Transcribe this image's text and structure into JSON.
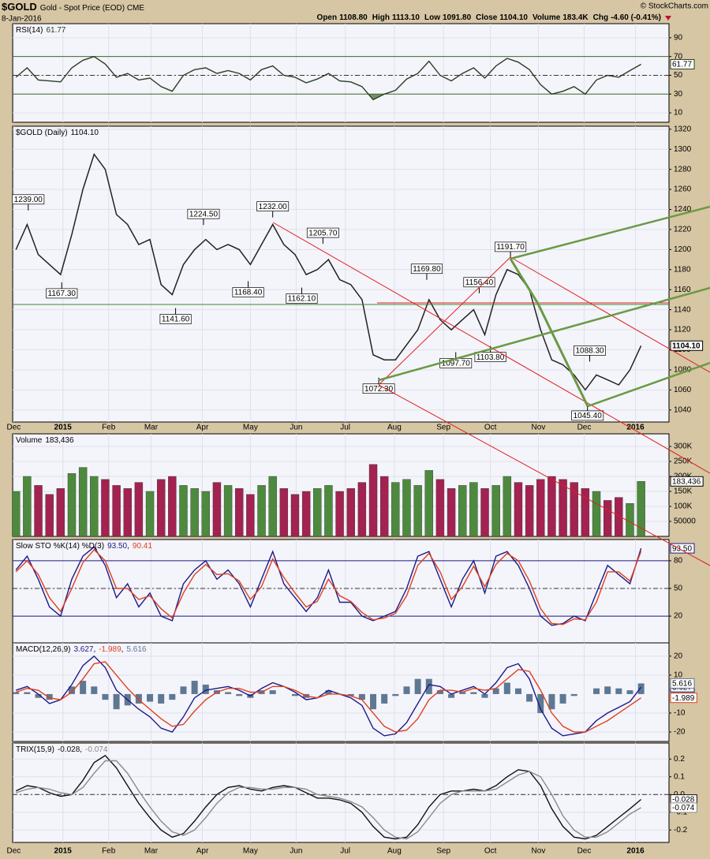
{
  "header": {
    "symbol": "$GOLD",
    "name": "Gold - Spot Price (EOD) CME",
    "date": "8-Jan-2016",
    "copyright": "© StockCharts.com",
    "quote": [
      {
        "name": "Open",
        "value": "1108.80"
      },
      {
        "name": "High",
        "value": "1113.10"
      },
      {
        "name": "Low",
        "value": "1091.80"
      },
      {
        "name": "Close",
        "value": "1104.10"
      },
      {
        "name": "Volume",
        "value": "183.4K"
      },
      {
        "name": "Chg",
        "value": "-4.60 (-0.41%)"
      }
    ]
  },
  "chart_data": [
    {
      "type": "line",
      "title": "RSI(14)",
      "ylim": [
        0,
        105
      ],
      "yticks": [
        10,
        30,
        50,
        70,
        90
      ],
      "bands": [
        30,
        70
      ],
      "midline": 50,
      "band_fill": "#4f6f35",
      "series": [
        {
          "color": "#2c3d22",
          "badge": true,
          "values": [
            48,
            58,
            45,
            44,
            43,
            58,
            66,
            70,
            62,
            48,
            52,
            45,
            47,
            38,
            33,
            50,
            56,
            58,
            52,
            55,
            52,
            45,
            56,
            60,
            50,
            48,
            42,
            46,
            52,
            44,
            43,
            38,
            24,
            30,
            34,
            46,
            52,
            65,
            50,
            44,
            52,
            58,
            47,
            60,
            68,
            64,
            56,
            40,
            30,
            33,
            38,
            30,
            45,
            50,
            48,
            55,
            61.77
          ]
        }
      ]
    },
    {
      "type": "line",
      "title": "$GOLD (Daily)",
      "ylim": [
        1028,
        1323
      ],
      "yticks": [
        1040,
        1060,
        1080,
        1100,
        1120,
        1140,
        1160,
        1180,
        1200,
        1220,
        1240,
        1260,
        1280,
        1300,
        1320
      ],
      "xlim": [
        -0.3,
        58.5
      ],
      "xticks": [
        {
          "value": -0.2,
          "label": "Dec"
        },
        {
          "value": 4.2,
          "label": "2015"
        },
        {
          "value": 8.3,
          "label": "Feb"
        },
        {
          "value": 12.1,
          "label": "Mar"
        },
        {
          "value": 16.7,
          "label": "Apr"
        },
        {
          "value": 21,
          "label": "May"
        },
        {
          "value": 25.1,
          "label": "Jun"
        },
        {
          "value": 29.5,
          "label": "Jul"
        },
        {
          "value": 33.9,
          "label": "Aug"
        },
        {
          "value": 38.3,
          "label": "Sep"
        },
        {
          "value": 42.5,
          "label": "Oct"
        },
        {
          "value": 46.8,
          "label": "Nov"
        },
        {
          "value": 50.9,
          "label": "Dec"
        },
        {
          "value": 55.5,
          "label": "2016"
        }
      ],
      "annotations": [
        {
          "x": 1.1,
          "value": 1239,
          "label": "1239.00"
        },
        {
          "x": 4.1,
          "value": 1167.3,
          "label": "1167.30"
        },
        {
          "x": 14.3,
          "value": 1141.6,
          "label": "1141.60"
        },
        {
          "x": 16.8,
          "value": 1224.5,
          "label": "1224.50"
        },
        {
          "x": 20.8,
          "value": 1168.4,
          "label": "1168.40"
        },
        {
          "x": 23,
          "value": 1232,
          "label": "1232.00"
        },
        {
          "x": 25.6,
          "value": 1162.1,
          "label": "1162.10"
        },
        {
          "x": 27.5,
          "value": 1205.7,
          "label": "1205.70"
        },
        {
          "x": 32.5,
          "value": 1072.3,
          "label": "1072.30"
        },
        {
          "x": 36.8,
          "value": 1169.8,
          "label": "1169.80"
        },
        {
          "x": 39.4,
          "value": 1097.7,
          "label": "1097.70"
        },
        {
          "x": 41.5,
          "value": 1156.4,
          "label": "1156.40"
        },
        {
          "x": 42.5,
          "value": 1103.8,
          "label": "1103.80"
        },
        {
          "x": 44.3,
          "value": 1191.7,
          "label": "1191.70"
        },
        {
          "x": 51.4,
          "value": 1088.3,
          "label": "1088.30"
        },
        {
          "x": 51.2,
          "value": 1045.4,
          "label": "1045.40"
        }
      ],
      "series": [
        {
          "color": "#222222",
          "badge": true,
          "values": [
            1200,
            1225,
            1195,
            1185,
            1175,
            1215,
            1260,
            1295,
            1280,
            1235,
            1225,
            1205,
            1210,
            1165,
            1155,
            1185,
            1200,
            1210,
            1200,
            1205,
            1200,
            1185,
            1205,
            1225,
            1205,
            1195,
            1175,
            1180,
            1190,
            1170,
            1165,
            1150,
            1095,
            1090,
            1090,
            1105,
            1120,
            1150,
            1130,
            1120,
            1130,
            1140,
            1115,
            1155,
            1180,
            1175,
            1160,
            1120,
            1090,
            1085,
            1075,
            1060,
            1075,
            1070,
            1065,
            1080,
            1104.1
          ],
          "value_labels": [
            null,
            null,
            null,
            null,
            null,
            null,
            null,
            null,
            null,
            null,
            null,
            null,
            null,
            null,
            null,
            null,
            null,
            null,
            null,
            null,
            null,
            null,
            null,
            null,
            null,
            null,
            null,
            null,
            null,
            null,
            null,
            null,
            null,
            null,
            null,
            null,
            null,
            null,
            null,
            null,
            null,
            null,
            null,
            null,
            null,
            null,
            null,
            null,
            null,
            null,
            null,
            null,
            null,
            null,
            null,
            null,
            "1104.10"
          ]
        }
      ]
    },
    {
      "type": "bar",
      "title": "Volume",
      "ylim": [
        0,
        342000
      ],
      "yticks": [
        50000,
        {
          "value": 100000,
          "label": "100K"
        },
        {
          "value": 150000,
          "label": "150K"
        },
        {
          "value": 200000,
          "label": "200K"
        },
        {
          "value": 250000,
          "label": "250K"
        },
        {
          "value": 300000,
          "label": "300K"
        }
      ],
      "up_color": "#4d8a3e",
      "down_color": "#a3224f",
      "series": [
        {
          "color": "#000000",
          "badge": true,
          "values": [
            150000,
            200000,
            170000,
            140000,
            160000,
            210000,
            230000,
            200000,
            190000,
            170000,
            160000,
            180000,
            150000,
            190000,
            200000,
            170000,
            160000,
            150000,
            180000,
            170000,
            160000,
            140000,
            170000,
            200000,
            160000,
            140000,
            150000,
            160000,
            170000,
            150000,
            160000,
            180000,
            240000,
            200000,
            180000,
            190000,
            170000,
            220000,
            190000,
            160000,
            170000,
            180000,
            160000,
            170000,
            200000,
            180000,
            170000,
            190000,
            200000,
            190000,
            180000,
            160000,
            150000,
            120000,
            130000,
            110000,
            183436
          ],
          "value_labels": [
            null,
            null,
            null,
            null,
            null,
            null,
            null,
            null,
            null,
            null,
            null,
            null,
            null,
            null,
            null,
            null,
            null,
            null,
            null,
            null,
            null,
            null,
            null,
            null,
            null,
            null,
            null,
            null,
            null,
            null,
            null,
            null,
            null,
            null,
            null,
            null,
            null,
            null,
            null,
            null,
            null,
            null,
            null,
            null,
            null,
            null,
            null,
            null,
            null,
            null,
            null,
            null,
            null,
            null,
            null,
            null,
            "183,436"
          ]
        }
      ]
    },
    {
      "type": "line",
      "title": "Slow STO %K(14) %D(3)",
      "ylim": [
        -9,
        103
      ],
      "yticks": [
        20,
        50,
        80
      ],
      "bands": [
        20,
        80
      ],
      "midline": 50,
      "series": [
        {
          "color": "#1b1b86",
          "badge": true,
          "values": [
            70,
            85,
            60,
            30,
            20,
            60,
            85,
            95,
            75,
            40,
            55,
            30,
            45,
            20,
            15,
            55,
            70,
            80,
            60,
            70,
            55,
            30,
            60,
            90,
            55,
            40,
            25,
            40,
            70,
            35,
            35,
            20,
            15,
            20,
            25,
            50,
            85,
            90,
            60,
            30,
            60,
            80,
            45,
            85,
            90,
            75,
            50,
            20,
            10,
            12,
            20,
            15,
            45,
            75,
            65,
            55,
            93.5
          ],
          "value_labels": [
            null,
            null,
            null,
            null,
            null,
            null,
            null,
            null,
            null,
            null,
            null,
            null,
            null,
            null,
            null,
            null,
            null,
            null,
            null,
            null,
            null,
            null,
            null,
            null,
            null,
            null,
            null,
            null,
            null,
            null,
            null,
            null,
            null,
            null,
            null,
            null,
            null,
            null,
            null,
            null,
            null,
            null,
            null,
            null,
            null,
            null,
            null,
            null,
            null,
            null,
            null,
            null,
            null,
            null,
            null,
            null,
            "93.50"
          ]
        },
        {
          "color": "#e0401e",
          "values": [
            68,
            80,
            65,
            40,
            25,
            50,
            78,
            92,
            80,
            50,
            50,
            38,
            42,
            28,
            18,
            45,
            65,
            76,
            65,
            66,
            58,
            38,
            52,
            82,
            62,
            45,
            30,
            36,
            60,
            42,
            36,
            24,
            16,
            18,
            23,
            42,
            75,
            88,
            68,
            38,
            52,
            74,
            52,
            76,
            88,
            80,
            58,
            28,
            12,
            11,
            17,
            16,
            35,
            68,
            68,
            58,
            90.41
          ]
        }
      ]
    },
    {
      "type": "line",
      "title": "MACD(12,26,9)",
      "ylim": [
        -25,
        27
      ],
      "yticks": [
        -20,
        -10,
        10,
        20
      ],
      "series": [
        {
          "color": "#1b1b86",
          "badge": true,
          "values": [
            2,
            4,
            0,
            -5,
            -3,
            5,
            15,
            20,
            14,
            2,
            -3,
            -8,
            -12,
            -18,
            -20,
            -12,
            -2,
            2,
            3,
            4,
            2,
            -1,
            3,
            6,
            4,
            1,
            -3,
            -2,
            2,
            0,
            -2,
            -6,
            -18,
            -22,
            -21,
            -15,
            -5,
            5,
            4,
            0,
            2,
            4,
            0,
            6,
            14,
            16,
            8,
            -8,
            -18,
            -22,
            -21,
            -20,
            -14,
            -10,
            -7,
            -4,
            3.627
          ]
        },
        {
          "color": "#e0401e",
          "badge": true,
          "values": [
            1,
            3,
            2,
            -2,
            -3,
            1,
            8,
            16,
            17,
            10,
            3,
            -3,
            -8,
            -13,
            -17,
            -16,
            -9,
            -3,
            1,
            3,
            3,
            1,
            1,
            4,
            4,
            2,
            -1,
            -2,
            0,
            0,
            -1,
            -3,
            -10,
            -17,
            -20,
            -19,
            -13,
            -3,
            2,
            2,
            1,
            3,
            2,
            3,
            8,
            13,
            12,
            2,
            -10,
            -17,
            -20,
            -20,
            -17,
            -14,
            -10,
            -6,
            -1.989
          ]
        },
        {
          "color": "#5e7893",
          "style": "histogram",
          "badge": true,
          "values": [
            1,
            1,
            -2,
            -3,
            0,
            4,
            7,
            4,
            -3,
            -8,
            -6,
            -5,
            -4,
            -5,
            -3,
            4,
            7,
            5,
            2,
            1,
            -1,
            -2,
            2,
            2,
            0,
            -1,
            -2,
            0,
            2,
            0,
            -1,
            -3,
            -8,
            -5,
            -1,
            4,
            8,
            8,
            2,
            -2,
            1,
            1,
            -2,
            3,
            6,
            3,
            -4,
            -10,
            -8,
            -5,
            -1,
            0,
            3,
            4,
            3,
            2,
            5.616
          ]
        }
      ]
    },
    {
      "type": "line",
      "title": "TRIX(15,9)",
      "ylim": [
        -0.27,
        0.29
      ],
      "yticks": [
        -0.2,
        -0.1,
        {
          "value": 0,
          "label": "0.0"
        },
        0.1,
        0.2
      ],
      "midline": 0,
      "series": [
        {
          "color": "#111111",
          "badge": true,
          "values": [
            0.02,
            0.05,
            0.04,
            0.01,
            -0.01,
            0,
            0.08,
            0.18,
            0.22,
            0.15,
            0.05,
            -0.05,
            -0.13,
            -0.2,
            -0.24,
            -0.22,
            -0.15,
            -0.07,
            0,
            0.04,
            0.05,
            0.03,
            0.02,
            0.04,
            0.05,
            0.04,
            0.01,
            -0.02,
            -0.02,
            -0.03,
            -0.05,
            -0.1,
            -0.18,
            -0.24,
            -0.25,
            -0.24,
            -0.17,
            -0.07,
            0,
            0.02,
            0.02,
            0.03,
            0.02,
            0.05,
            0.1,
            0.14,
            0.13,
            0.05,
            -0.08,
            -0.18,
            -0.24,
            -0.25,
            -0.23,
            -0.18,
            -0.13,
            -0.08,
            -0.028
          ]
        },
        {
          "color": "#8a8a8a",
          "badge": true,
          "values": [
            0.01,
            0.03,
            0.04,
            0.03,
            0.01,
            0,
            0.04,
            0.12,
            0.19,
            0.19,
            0.12,
            0.02,
            -0.07,
            -0.15,
            -0.21,
            -0.23,
            -0.2,
            -0.13,
            -0.05,
            0.01,
            0.04,
            0.04,
            0.03,
            0.03,
            0.04,
            0.04,
            0.03,
            0,
            -0.01,
            -0.02,
            -0.04,
            -0.07,
            -0.13,
            -0.2,
            -0.24,
            -0.25,
            -0.21,
            -0.13,
            -0.05,
            0,
            0.02,
            0.02,
            0.02,
            0.03,
            0.07,
            0.11,
            0.13,
            0.1,
            0,
            -0.12,
            -0.2,
            -0.24,
            -0.24,
            -0.21,
            -0.16,
            -0.11,
            -0.074
          ]
        }
      ]
    }
  ]
}
